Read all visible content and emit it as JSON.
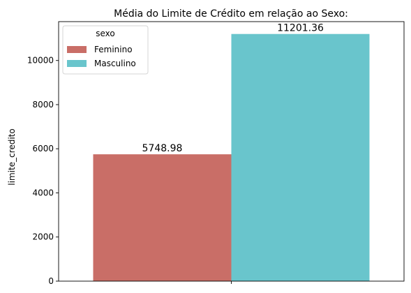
{
  "chart_data": {
    "type": "bar",
    "title": "Média do Limite de Crédito em relação ao Sexo:",
    "xlabel": "",
    "ylabel": "limite_credito",
    "categories": [
      ""
    ],
    "series": [
      {
        "name": "Feminino",
        "values": [
          5748.98
        ],
        "label": "5748.98",
        "color": "#c96e67"
      },
      {
        "name": "Masculino",
        "values": [
          11201.36
        ],
        "label": "11201.36",
        "color": "#69c5cc"
      }
    ],
    "ylim": [
      0,
      11761.43
    ],
    "yticks": [
      0,
      2000,
      4000,
      6000,
      8000,
      10000
    ],
    "grid": false,
    "legend": {
      "title": "sexo",
      "placement": "top-left"
    }
  }
}
